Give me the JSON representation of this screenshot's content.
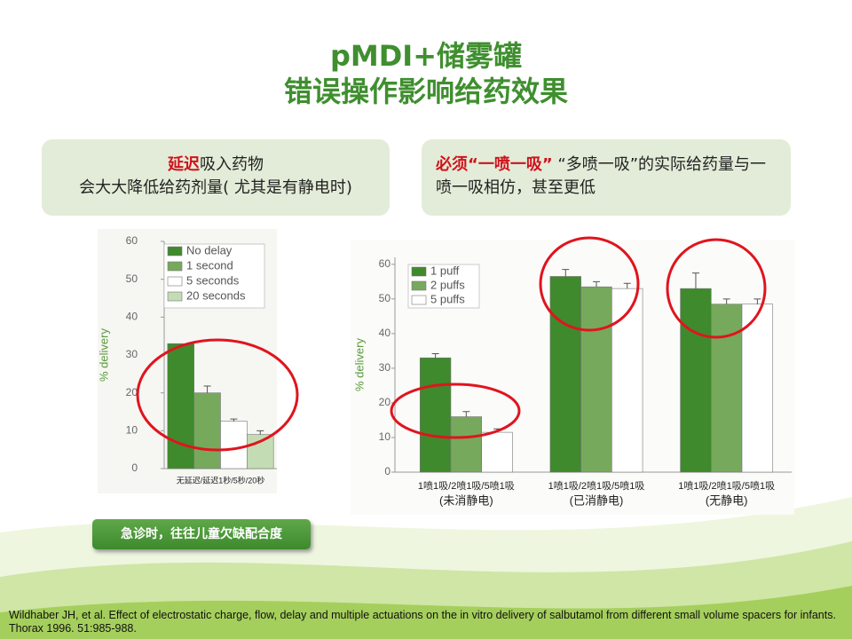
{
  "title": [
    "pMDI+储雾罐",
    "错误操作影响给药效果"
  ],
  "boxes": [
    {
      "highlight": "延迟",
      "text": "吸入药物",
      "line2": "会大大降低给药剂量( 尤其是有静电时)"
    },
    {
      "highlight": "必须“一喷一吸”",
      "text": "“多喷一吸”的实际给药量与一喷一吸相仿，甚至更低"
    }
  ],
  "button": "急诊时，往往儿童欠缺配合度",
  "citation": "Wildhaber JH, et al. Effect of electrostatic charge, flow, delay and multiple actuations on the in vitro delivery of salbutamol from different small volume spacers for infants. Thorax 1996. 51:985-988.",
  "chart_data": [
    {
      "type": "bar",
      "ylabel": "% delivery",
      "xlabel": "无延迟/延迟1秒/5秒/20秒",
      "categories": [
        null
      ],
      "series": [
        {
          "name": "No delay",
          "color": "#3f8a2c",
          "values": [
            33
          ],
          "errors": [
            0
          ]
        },
        {
          "name": "1 second",
          "color": "#76a95c",
          "values": [
            20
          ],
          "errors": [
            1.8
          ]
        },
        {
          "name": "5 seconds",
          "color": "#ffffff",
          "values": [
            12.5
          ],
          "errors": [
            0.6
          ]
        },
        {
          "name": "20 seconds",
          "color": "#c3dcb3",
          "values": [
            9
          ],
          "errors": [
            1
          ]
        }
      ],
      "ylim": [
        0,
        60
      ],
      "yticks": [
        0,
        10,
        20,
        30,
        40,
        50,
        60
      ],
      "legend": "upper left"
    },
    {
      "type": "bar",
      "ylabel": "% delivery",
      "categories": [
        "1喷1吸/2喷1吸/5喷1吸",
        "1喷1吸/2喷1吸/5喷1吸",
        "1喷1吸/2喷1吸/5喷1吸"
      ],
      "category_notes": [
        "(未消静电)",
        "(已消静电)",
        "(无静电)"
      ],
      "series": [
        {
          "name": "1 puff",
          "color": "#3f8a2c",
          "values": [
            33,
            56.5,
            53
          ],
          "errors": [
            1.2,
            2,
            4.5
          ]
        },
        {
          "name": "2 puffs",
          "color": "#76a95c",
          "values": [
            16,
            53.5,
            48.5
          ],
          "errors": [
            1.5,
            1.5,
            1.5
          ]
        },
        {
          "name": "5 puffs",
          "color": "#ffffff",
          "values": [
            11.5,
            53,
            48.5
          ],
          "errors": [
            1,
            1.5,
            1.5
          ]
        }
      ],
      "ylim": [
        0,
        62
      ],
      "yticks": [
        0,
        10,
        20,
        30,
        40,
        50,
        60
      ],
      "legend": "upper left"
    }
  ]
}
